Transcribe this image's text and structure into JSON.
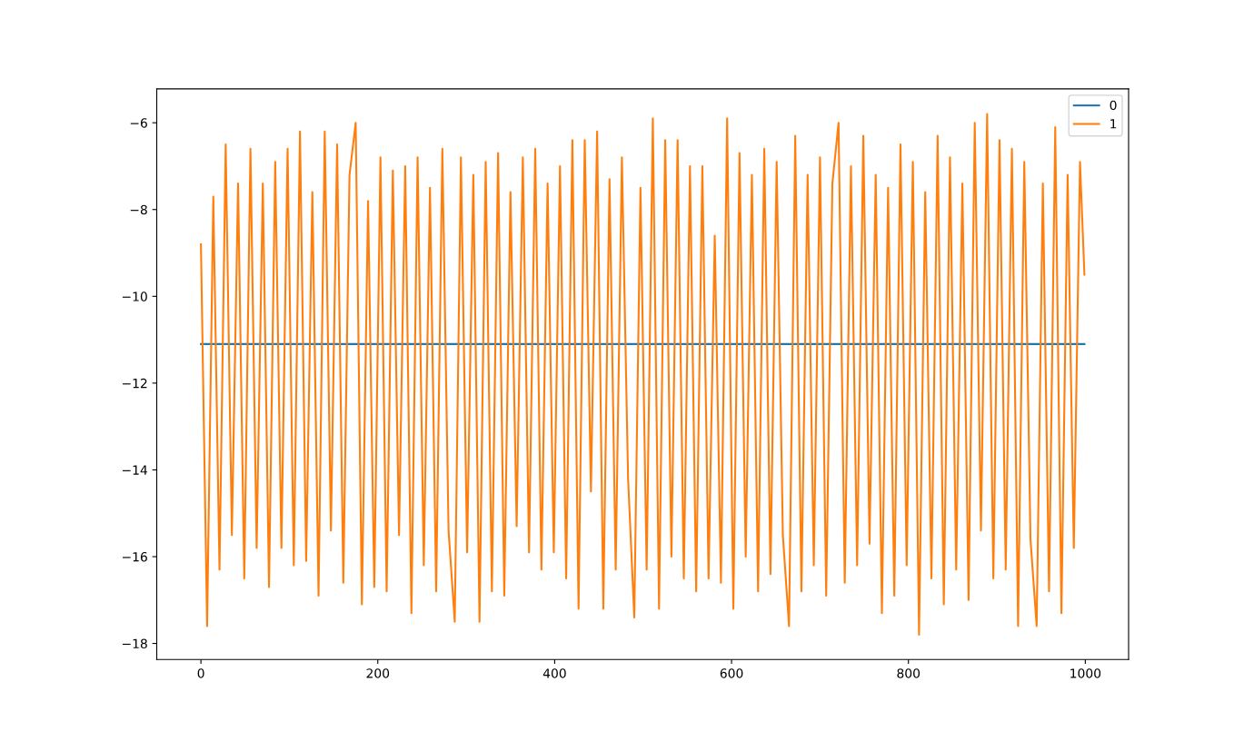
{
  "chart_data": {
    "type": "line",
    "xlim": [
      -49.95,
      1048.95
    ],
    "xticks": [
      0,
      200,
      400,
      600,
      800,
      1000
    ],
    "ylim": [
      -18.37,
      -5.22
    ],
    "yticks": [
      {
        "value": -18,
        "label": "−18"
      },
      {
        "value": -16,
        "label": "−16"
      },
      {
        "value": -14,
        "label": "−14"
      },
      {
        "value": -12,
        "label": "−12"
      },
      {
        "value": -10,
        "label": "−10"
      },
      {
        "value": -8,
        "label": "−8"
      },
      {
        "value": -6,
        "label": "−6"
      }
    ],
    "grid": false,
    "legend": "top right",
    "line_style": "solid",
    "series": [
      {
        "name": "0",
        "color": "#1f77b4",
        "x": [
          0,
          999
        ],
        "values": [
          -11.1,
          -11.1
        ]
      },
      {
        "name": "1",
        "color": "#ff7f0e",
        "x": [
          0,
          7,
          14,
          21,
          28,
          35,
          42,
          49,
          56,
          63,
          70,
          77,
          84,
          91,
          98,
          105,
          112,
          119,
          126,
          133,
          140,
          147,
          154,
          161,
          168,
          175,
          182,
          189,
          196,
          203,
          210,
          217,
          224,
          231,
          238,
          245,
          252,
          259,
          266,
          273,
          280,
          287,
          294,
          301,
          308,
          315,
          322,
          329,
          336,
          343,
          350,
          357,
          364,
          371,
          378,
          385,
          392,
          399,
          406,
          413,
          420,
          427,
          434,
          441,
          448,
          455,
          462,
          469,
          476,
          483,
          490,
          497,
          504,
          511,
          518,
          525,
          532,
          539,
          546,
          553,
          560,
          567,
          574,
          581,
          588,
          595,
          602,
          609,
          616,
          623,
          630,
          637,
          644,
          651,
          658,
          665,
          672,
          679,
          686,
          693,
          700,
          707,
          714,
          721,
          728,
          735,
          742,
          749,
          756,
          763,
          770,
          777,
          784,
          791,
          798,
          805,
          812,
          819,
          826,
          833,
          840,
          847,
          854,
          861,
          868,
          875,
          882,
          889,
          896,
          903,
          910,
          917,
          924,
          931,
          938,
          945,
          952,
          959,
          966,
          973,
          980,
          987,
          994,
          999
        ],
        "values": [
          -8.8,
          -17.6,
          -7.7,
          -16.3,
          -6.5,
          -15.5,
          -7.4,
          -16.5,
          -6.6,
          -15.8,
          -7.4,
          -16.7,
          -6.9,
          -15.8,
          -6.6,
          -16.2,
          -6.2,
          -16.1,
          -7.6,
          -16.9,
          -6.2,
          -15.4,
          -6.5,
          -16.6,
          -7.2,
          -6.0,
          -17.1,
          -7.8,
          -16.7,
          -6.8,
          -16.8,
          -7.1,
          -15.5,
          -7.0,
          -17.3,
          -6.8,
          -16.2,
          -7.5,
          -16.8,
          -6.6,
          -15.4,
          -17.5,
          -6.8,
          -15.9,
          -7.2,
          -17.5,
          -6.9,
          -16.8,
          -6.7,
          -16.9,
          -7.6,
          -15.3,
          -6.8,
          -15.9,
          -6.6,
          -16.3,
          -7.4,
          -15.9,
          -7.0,
          -16.5,
          -6.4,
          -17.2,
          -6.4,
          -14.5,
          -6.2,
          -17.2,
          -7.3,
          -16.3,
          -6.8,
          -14.2,
          -17.4,
          -7.5,
          -16.3,
          -5.9,
          -17.2,
          -6.4,
          -16.0,
          -6.4,
          -16.5,
          -7.0,
          -16.8,
          -7.0,
          -16.5,
          -8.6,
          -16.6,
          -5.9,
          -17.2,
          -6.7,
          -16.0,
          -7.2,
          -16.8,
          -6.6,
          -16.4,
          -6.9,
          -15.5,
          -17.6,
          -6.3,
          -16.8,
          -7.2,
          -16.2,
          -6.8,
          -16.9,
          -7.4,
          -6.0,
          -16.6,
          -7.0,
          -16.2,
          -6.3,
          -15.7,
          -7.2,
          -17.3,
          -7.5,
          -16.9,
          -6.5,
          -16.2,
          -6.9,
          -17.8,
          -7.6,
          -16.5,
          -6.3,
          -17.1,
          -6.8,
          -16.3,
          -7.4,
          -17.0,
          -6.0,
          -15.4,
          -5.8,
          -16.5,
          -6.4,
          -16.3,
          -6.6,
          -17.6,
          -6.9,
          -15.6,
          -17.6,
          -7.4,
          -16.8,
          -6.1,
          -17.3,
          -7.2,
          -15.8,
          -6.9,
          -9.5
        ]
      }
    ]
  }
}
